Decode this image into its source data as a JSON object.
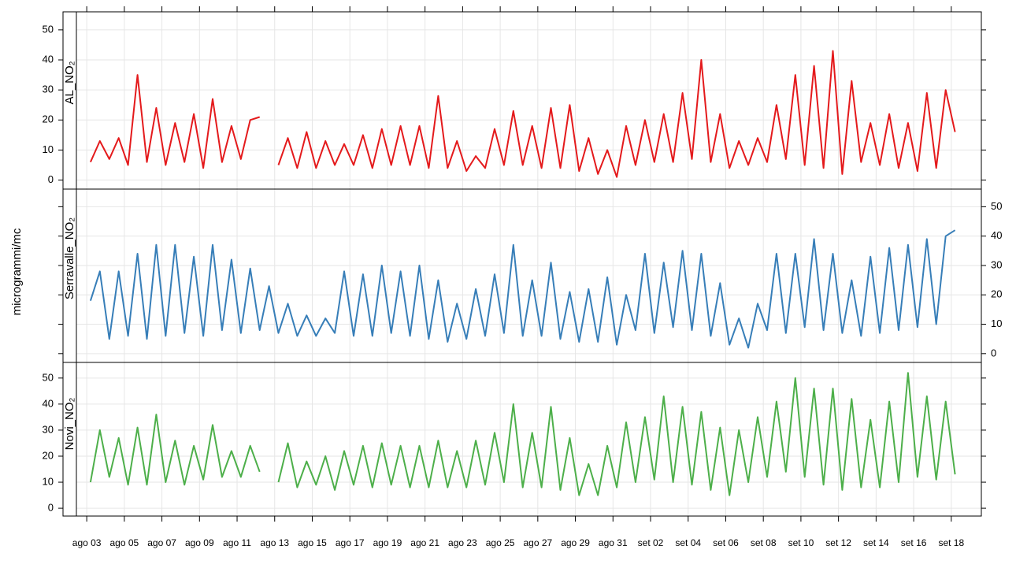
{
  "chart_data": {
    "type": "line",
    "ylabel": "microgrammi/mc",
    "x": [
      3.2,
      3.7,
      4.2,
      4.7,
      5.2,
      5.7,
      6.2,
      6.7,
      7.2,
      7.7,
      8.2,
      8.7,
      9.2,
      9.7,
      10.2,
      10.7,
      11.2,
      11.7,
      12.2,
      12.7,
      13.2,
      13.7,
      14.2,
      14.7,
      15.2,
      15.7,
      16.2,
      16.7,
      17.2,
      17.7,
      18.2,
      18.7,
      19.2,
      19.7,
      20.2,
      20.7,
      21.2,
      21.7,
      22.2,
      22.7,
      23.2,
      23.7,
      24.2,
      24.7,
      25.2,
      25.7,
      26.2,
      26.7,
      27.2,
      27.7,
      28.2,
      28.7,
      29.2,
      29.7,
      30.2,
      30.7,
      31.2,
      31.7,
      32.2,
      32.7,
      33.2,
      33.7,
      34.2,
      34.7,
      35.2,
      35.7,
      36.2,
      36.7,
      37.2,
      37.7,
      38.2,
      38.7,
      39.2,
      39.7,
      40.2,
      40.7,
      41.2,
      41.7,
      42.2,
      42.7,
      43.2,
      43.7,
      44.2,
      44.7,
      45.2,
      45.7,
      46.2,
      46.7,
      47.2,
      47.7,
      48.2,
      48.7,
      49.2
    ],
    "series": [
      {
        "name": "AL_NO₂",
        "color": "#e41a1c",
        "values": [
          6,
          13,
          7,
          14,
          5,
          35,
          6,
          24,
          5,
          19,
          6,
          22,
          4,
          27,
          6,
          18,
          7,
          20,
          21,
          null,
          5,
          14,
          4,
          16,
          4,
          13,
          5,
          12,
          5,
          15,
          4,
          17,
          5,
          18,
          5,
          18,
          4,
          28,
          4,
          13,
          3,
          8,
          4,
          17,
          5,
          23,
          5,
          18,
          4,
          24,
          4,
          25,
          3,
          14,
          2,
          10,
          1,
          18,
          5,
          20,
          6,
          22,
          6,
          29,
          7,
          40,
          6,
          22,
          4,
          13,
          5,
          14,
          6,
          25,
          7,
          35,
          5,
          38,
          4,
          43,
          2,
          33,
          6,
          19,
          5,
          22,
          4,
          19,
          3,
          29,
          4,
          30,
          16
        ]
      },
      {
        "name": "Serravalle_NO₂",
        "color": "#377eb8",
        "values": [
          18,
          28,
          5,
          28,
          6,
          34,
          5,
          37,
          6,
          37,
          7,
          33,
          6,
          37,
          8,
          32,
          7,
          29,
          8,
          23,
          7,
          17,
          6,
          13,
          6,
          12,
          7,
          28,
          6,
          27,
          6,
          30,
          7,
          28,
          6,
          30,
          5,
          25,
          4,
          17,
          5,
          22,
          6,
          27,
          7,
          37,
          6,
          25,
          6,
          31,
          5,
          21,
          4,
          22,
          4,
          26,
          3,
          20,
          8,
          34,
          7,
          31,
          9,
          35,
          8,
          34,
          6,
          24,
          3,
          12,
          2,
          17,
          8,
          34,
          7,
          34,
          9,
          39,
          8,
          34,
          7,
          25,
          6,
          33,
          7,
          36,
          8,
          37,
          9,
          39,
          10,
          40,
          42
        ]
      },
      {
        "name": "Novi_NO₂",
        "color": "#4daf4a",
        "values": [
          10,
          30,
          12,
          27,
          9,
          31,
          9,
          36,
          10,
          26,
          9,
          24,
          11,
          32,
          12,
          22,
          12,
          24,
          14,
          null,
          10,
          25,
          8,
          18,
          9,
          20,
          7,
          22,
          9,
          24,
          8,
          25,
          9,
          24,
          8,
          24,
          8,
          26,
          8,
          22,
          8,
          26,
          9,
          29,
          10,
          40,
          8,
          29,
          8,
          39,
          7,
          27,
          5,
          17,
          5,
          24,
          8,
          33,
          10,
          35,
          11,
          43,
          10,
          39,
          9,
          37,
          7,
          31,
          5,
          30,
          10,
          35,
          12,
          41,
          14,
          50,
          12,
          46,
          9,
          46,
          7,
          42,
          8,
          34,
          8,
          41,
          10,
          52,
          12,
          43,
          11,
          41,
          13
        ]
      }
    ],
    "xlim": [
      2.45,
      50.6
    ],
    "xticks": [
      {
        "value": 3,
        "label": "ago 03"
      },
      {
        "value": 5,
        "label": "ago 05"
      },
      {
        "value": 7,
        "label": "ago 07"
      },
      {
        "value": 9,
        "label": "ago 09"
      },
      {
        "value": 11,
        "label": "ago 11"
      },
      {
        "value": 13,
        "label": "ago 13"
      },
      {
        "value": 15,
        "label": "ago 15"
      },
      {
        "value": 17,
        "label": "ago 17"
      },
      {
        "value": 19,
        "label": "ago 19"
      },
      {
        "value": 21,
        "label": "ago 21"
      },
      {
        "value": 23,
        "label": "ago 23"
      },
      {
        "value": 25,
        "label": "ago 25"
      },
      {
        "value": 27,
        "label": "ago 27"
      },
      {
        "value": 29,
        "label": "ago 29"
      },
      {
        "value": 31,
        "label": "ago 31"
      },
      {
        "value": 33,
        "label": "set 02"
      },
      {
        "value": 35,
        "label": "set 04"
      },
      {
        "value": 37,
        "label": "set 06"
      },
      {
        "value": 39,
        "label": "set 08"
      },
      {
        "value": 41,
        "label": "set 10"
      },
      {
        "value": 43,
        "label": "set 12"
      },
      {
        "value": 45,
        "label": "set 14"
      },
      {
        "value": 47,
        "label": "set 16"
      },
      {
        "value": 49,
        "label": "set 18"
      }
    ],
    "ylim": [
      -3,
      56
    ],
    "yticks": [
      0,
      10,
      20,
      30,
      40,
      50
    ],
    "grid": true
  }
}
